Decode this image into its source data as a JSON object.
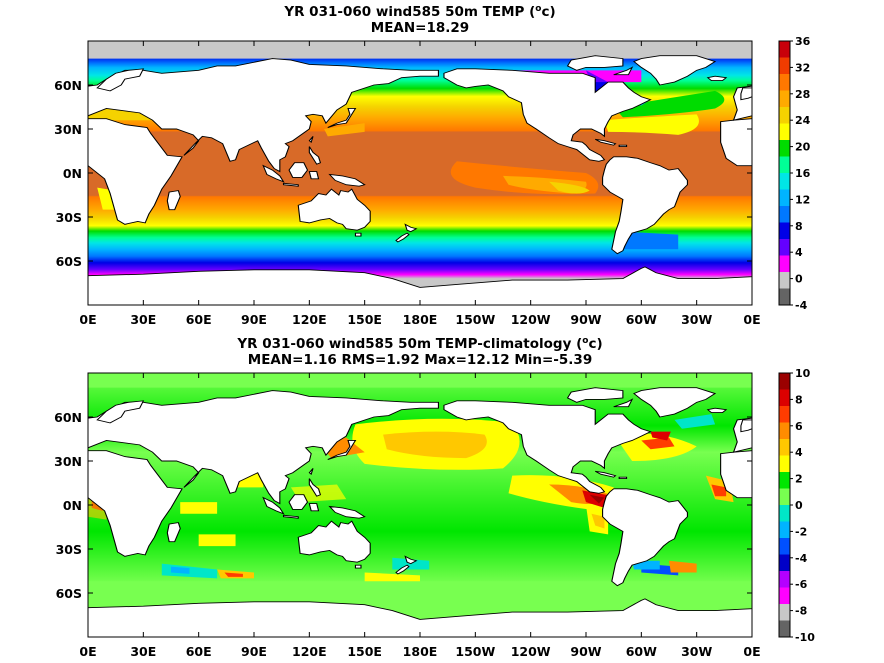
{
  "panels": [
    {
      "id": "temp",
      "title_line1": "YR 031-060 wind585 50m TEMP (",
      "title_unit_sup": "o",
      "title_unit_tail": "c)",
      "title_line2": "MEAN=18.29",
      "colorbar": {
        "labels": [
          "36",
          "32",
          "28",
          "24",
          "20",
          "16",
          "12",
          "8",
          "4",
          "0",
          "-4"
        ],
        "colors": [
          "#c8000a",
          "#f03c00",
          "#ff7800",
          "#ffaa00",
          "#f5d200",
          "#ffff00",
          "#00dc00",
          "#00ff96",
          "#00e6e6",
          "#00b4ff",
          "#0078ff",
          "#0000e6",
          "#6400ff",
          "#ff00ff",
          "#c8c8c8",
          "#646464"
        ]
      }
    },
    {
      "id": "anom",
      "title_line1": "YR 031-060 wind585 50m TEMP-climatology (",
      "title_unit_sup": "o",
      "title_unit_tail": "c)",
      "title_line2": "MEAN=1.16   RMS=1.92   Max=12.12   Min=-5.39",
      "colorbar": {
        "labels": [
          "10",
          "8",
          "6",
          "4",
          "2",
          "0",
          "-2",
          "-4",
          "-6",
          "-8",
          "-10"
        ],
        "colors": [
          "#9b0000",
          "#dc0000",
          "#ff3c00",
          "#ff8c00",
          "#ffc800",
          "#ffff00",
          "#00e600",
          "#78ff50",
          "#00e6c8",
          "#00b4ff",
          "#0050ff",
          "#0000c8",
          "#b400ff",
          "#ff00ff",
          "#c8c8c8",
          "#646464"
        ]
      }
    }
  ],
  "axes": {
    "x_ticks": [
      "0E",
      "30E",
      "60E",
      "90E",
      "120E",
      "150E",
      "180E",
      "150W",
      "120W",
      "90W",
      "60W",
      "30W",
      "0E"
    ],
    "y_ticks": [
      "60N",
      "30N",
      "0N",
      "30S",
      "60S"
    ]
  }
}
